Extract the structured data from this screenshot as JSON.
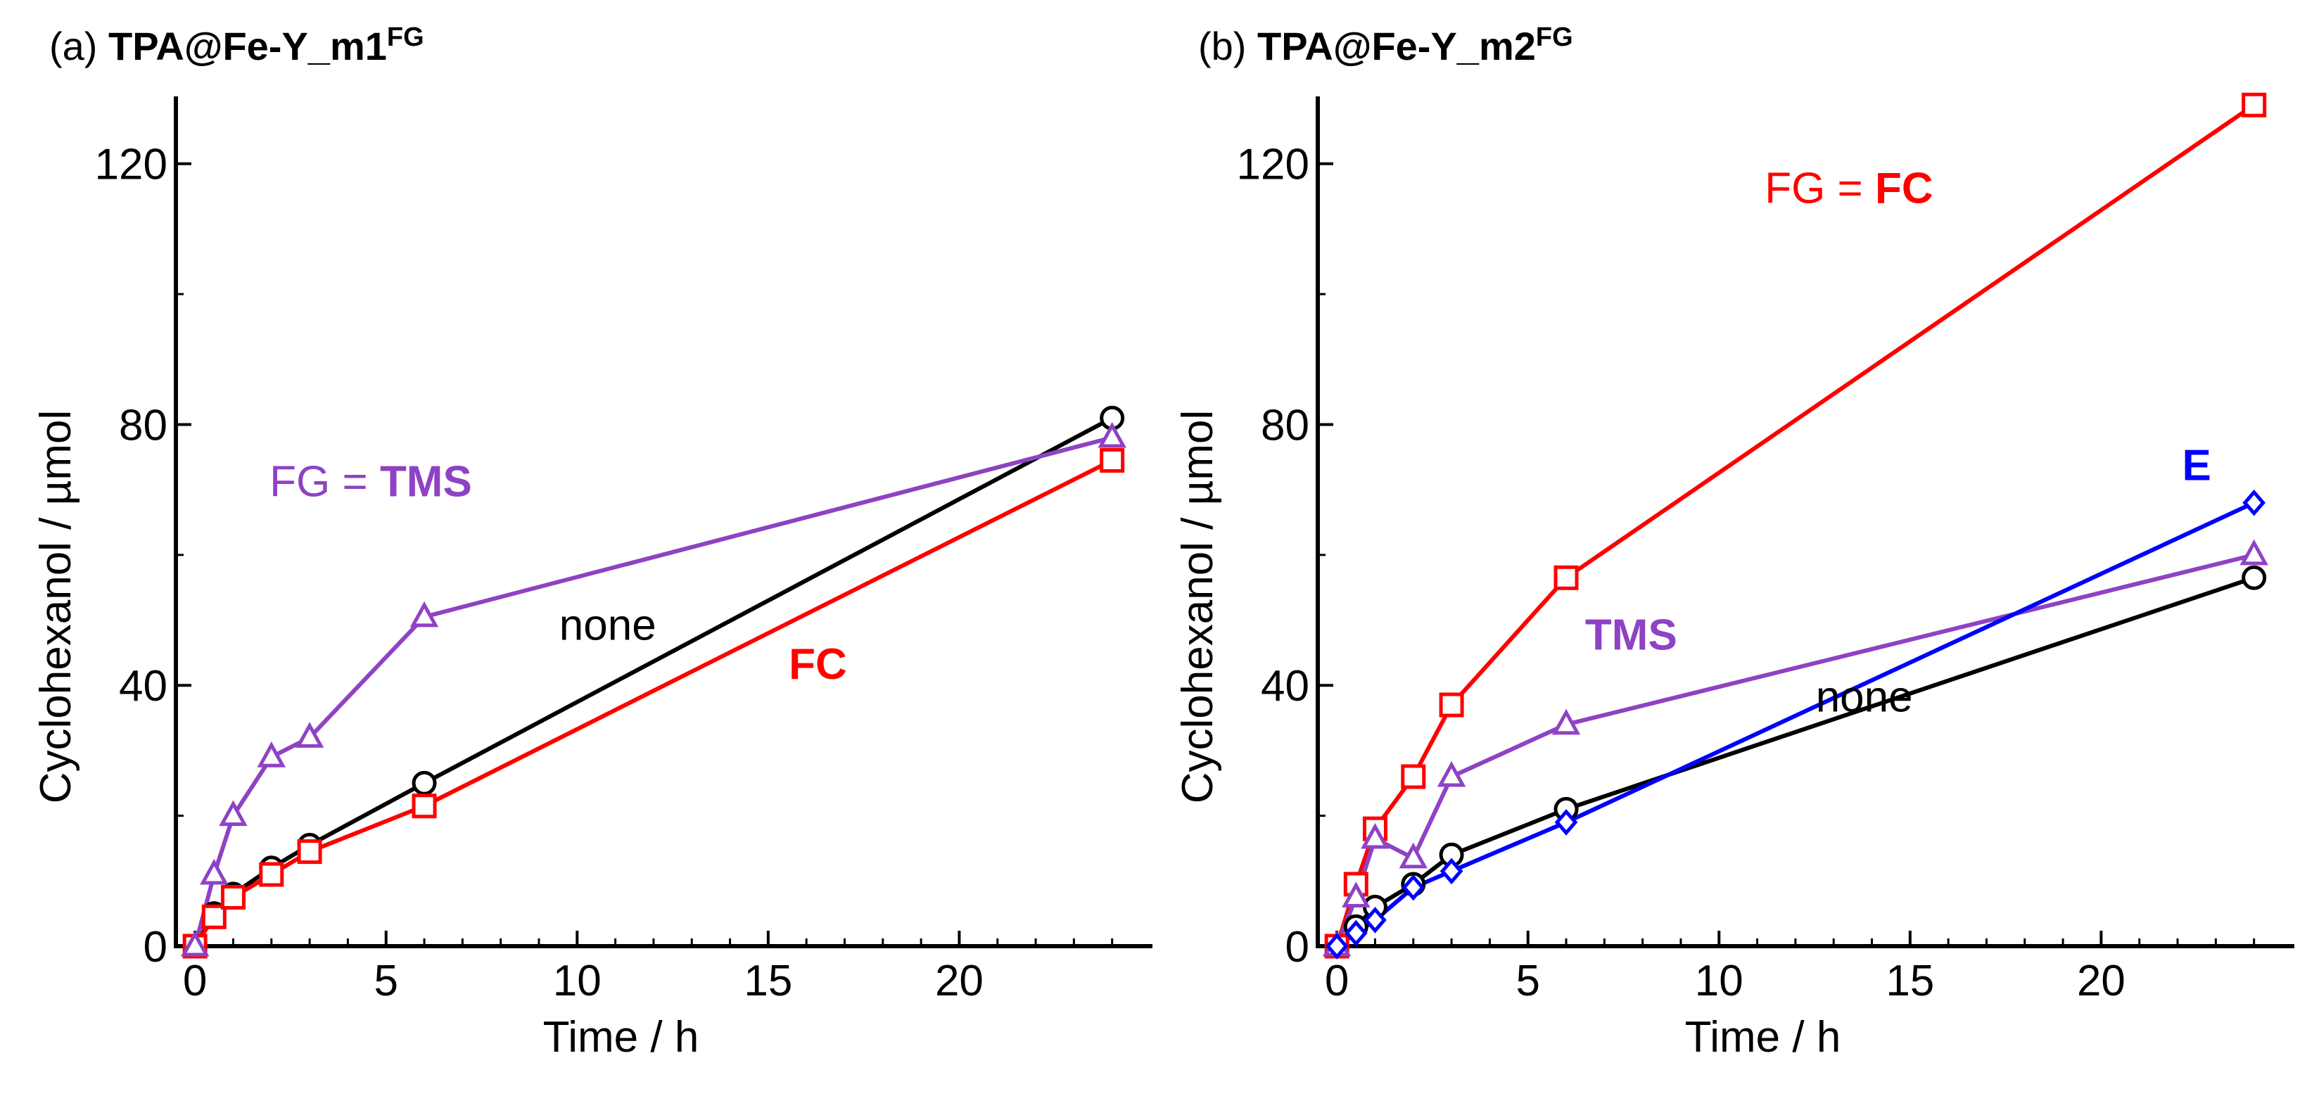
{
  "chart_data": [
    {
      "type": "line",
      "panel": "(a)",
      "title_prefix": "(a) ",
      "title_main": "TPA@Fe-Y_m1",
      "title_sup": "FG",
      "xlabel": "Time / h",
      "ylabel": "Cyclohexanol / µmol",
      "xlim": [
        -0.5,
        25
      ],
      "ylim": [
        0,
        130
      ],
      "xticks": [
        0,
        5,
        10,
        15,
        20
      ],
      "yticks": [
        0,
        40,
        80,
        120
      ],
      "series": [
        {
          "name": "none",
          "color": "#000000",
          "marker": "circle",
          "x": [
            0,
            0.5,
            1,
            2,
            3,
            6,
            24
          ],
          "y": [
            0,
            5,
            8,
            12,
            15.5,
            25,
            81
          ]
        },
        {
          "name": "FC",
          "color": "#ff0000",
          "marker": "square",
          "x": [
            0,
            0.5,
            1,
            2,
            3,
            6,
            24
          ],
          "y": [
            0,
            4.5,
            7.5,
            11,
            14.5,
            21.5,
            74.5
          ]
        },
        {
          "name": "TMS",
          "color": "#8f42c4",
          "marker": "triangle",
          "x": [
            0,
            0.5,
            1,
            2,
            3,
            6,
            24
          ],
          "y": [
            0,
            11,
            20,
            29,
            32,
            50.5,
            78
          ]
        }
      ],
      "annotations": [
        {
          "id": "tms",
          "parts": [
            {
              "text": "FG = ",
              "bold": false
            },
            {
              "text": "TMS",
              "bold": true
            }
          ],
          "color": "#8f42c4",
          "x": 4.6,
          "y": 69
        },
        {
          "id": "none",
          "parts": [
            {
              "text": "none",
              "bold": false
            }
          ],
          "color": "#000000",
          "x": 10.8,
          "y": 47
        },
        {
          "id": "fc",
          "parts": [
            {
              "text": "FC",
              "bold": true
            }
          ],
          "color": "#ff0000",
          "x": 16.3,
          "y": 41
        }
      ]
    },
    {
      "type": "line",
      "panel": "(b)",
      "title_prefix": "(b) ",
      "title_main": "TPA@Fe-Y_m2",
      "title_sup": "FG",
      "xlabel": "Time / h",
      "ylabel": "Cyclohexanol / µmol",
      "xlim": [
        -0.5,
        25
      ],
      "ylim": [
        0,
        130
      ],
      "xticks": [
        0,
        5,
        10,
        15,
        20
      ],
      "yticks": [
        0,
        40,
        80,
        120
      ],
      "series": [
        {
          "name": "none",
          "color": "#000000",
          "marker": "circle",
          "x": [
            0,
            0.5,
            1,
            2,
            3,
            6,
            24
          ],
          "y": [
            0,
            3,
            6,
            9.5,
            14,
            21,
            56.5
          ]
        },
        {
          "name": "FC",
          "color": "#ff0000",
          "marker": "square",
          "x": [
            0,
            0.5,
            1,
            2,
            3,
            6,
            24
          ],
          "y": [
            0,
            9.5,
            18,
            26,
            37,
            56.5,
            129
          ]
        },
        {
          "name": "TMS",
          "color": "#8f42c4",
          "marker": "triangle",
          "x": [
            0,
            0.5,
            1,
            2,
            3,
            6,
            24
          ],
          "y": [
            0,
            7.5,
            16.5,
            13.5,
            26,
            34,
            60
          ]
        },
        {
          "name": "E",
          "color": "#0000ff",
          "marker": "diamond",
          "x": [
            0,
            0.5,
            1,
            2,
            3,
            6,
            24
          ],
          "y": [
            0,
            2,
            4,
            9,
            11.5,
            19,
            68
          ]
        }
      ],
      "annotations": [
        {
          "id": "fc",
          "parts": [
            {
              "text": "FG = ",
              "bold": false
            },
            {
              "text": "FC",
              "bold": true
            }
          ],
          "color": "#ff0000",
          "x": 13.4,
          "y": 114
        },
        {
          "id": "e",
          "parts": [
            {
              "text": "E",
              "bold": true
            }
          ],
          "color": "#0000ff",
          "x": 22.5,
          "y": 71.5
        },
        {
          "id": "tms",
          "parts": [
            {
              "text": "TMS",
              "bold": true
            }
          ],
          "color": "#8f42c4",
          "x": 7.7,
          "y": 45.5
        },
        {
          "id": "none",
          "parts": [
            {
              "text": "none",
              "bold": false
            }
          ],
          "color": "#000000",
          "x": 13.8,
          "y": 36
        }
      ]
    }
  ]
}
